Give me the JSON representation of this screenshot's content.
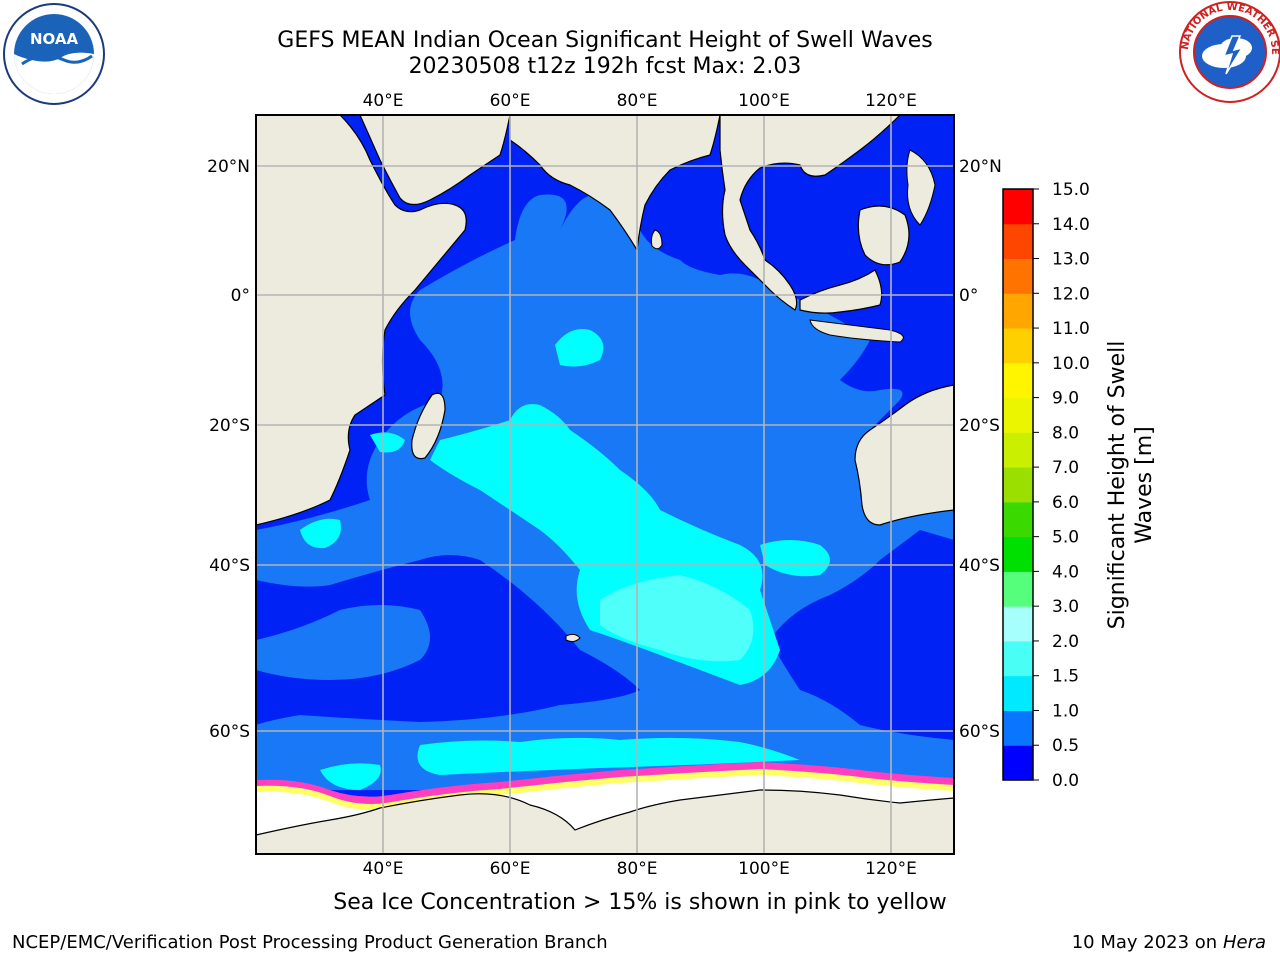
{
  "title": {
    "line1": "GEFS MEAN Indian Ocean Significant Height of Swell Waves",
    "line2": "20230508 t12z 192h fcst   Max: 2.03"
  },
  "logos": {
    "left": {
      "icon": "noaa-logo",
      "text": "NOAA"
    },
    "right": {
      "icon": "nws-logo",
      "text": "NATIONAL WEATHER SERVICE"
    }
  },
  "map": {
    "lon_range": [
      20,
      130
    ],
    "lat_range": [
      -75,
      28
    ],
    "lon_ticks": [
      {
        "value": 40,
        "label": "40°E"
      },
      {
        "value": 60,
        "label": "60°E"
      },
      {
        "value": 80,
        "label": "80°E"
      },
      {
        "value": 100,
        "label": "100°E"
      },
      {
        "value": 120,
        "label": "120°E"
      }
    ],
    "lat_ticks": [
      {
        "value": 20,
        "label": "20°N"
      },
      {
        "value": 0,
        "label": "0°"
      },
      {
        "value": -20,
        "label": "20°S"
      },
      {
        "value": -40,
        "label": "40°S"
      },
      {
        "value": -60,
        "label": "60°S"
      }
    ],
    "colors": {
      "land": "#ecebdd",
      "ocean_low": "#0022f5",
      "ocean_mid": "#1878f5",
      "ocean_high": "#00ffff",
      "ocean_peak": "#4ffffa",
      "ice": "#ffffff",
      "ice_edge": [
        "#ff3fbf",
        "#ff8fd4",
        "#ffc96b",
        "#ffff66"
      ],
      "grid": "#b4b4b4"
    }
  },
  "colorbar": {
    "label": "Significant Height of Swell Waves [m]",
    "ticks": [
      "0.0",
      "0.5",
      "1.0",
      "1.5",
      "2.0",
      "3.0",
      "4.0",
      "5.0",
      "6.0",
      "7.0",
      "8.0",
      "9.0",
      "10.0",
      "11.0",
      "12.0",
      "13.0",
      "14.0",
      "15.0"
    ],
    "colors": [
      "#0000ff",
      "#0a75ff",
      "#00e9ff",
      "#49fff5",
      "#a6fffa",
      "#56ff7b",
      "#00e000",
      "#3ad900",
      "#9bdf00",
      "#cbef00",
      "#ebf500",
      "#fff500",
      "#ffd000",
      "#ffa700",
      "#ff7400",
      "#ff4600",
      "#ff0000"
    ]
  },
  "footer": {
    "note": "Sea Ice Concentration > 15% is shown in pink to yellow",
    "credit_left": "NCEP/EMC/Verification Post Processing Product Generation Branch",
    "credit_right_date": "10 May 2023 on",
    "credit_right_host": "Hera"
  }
}
